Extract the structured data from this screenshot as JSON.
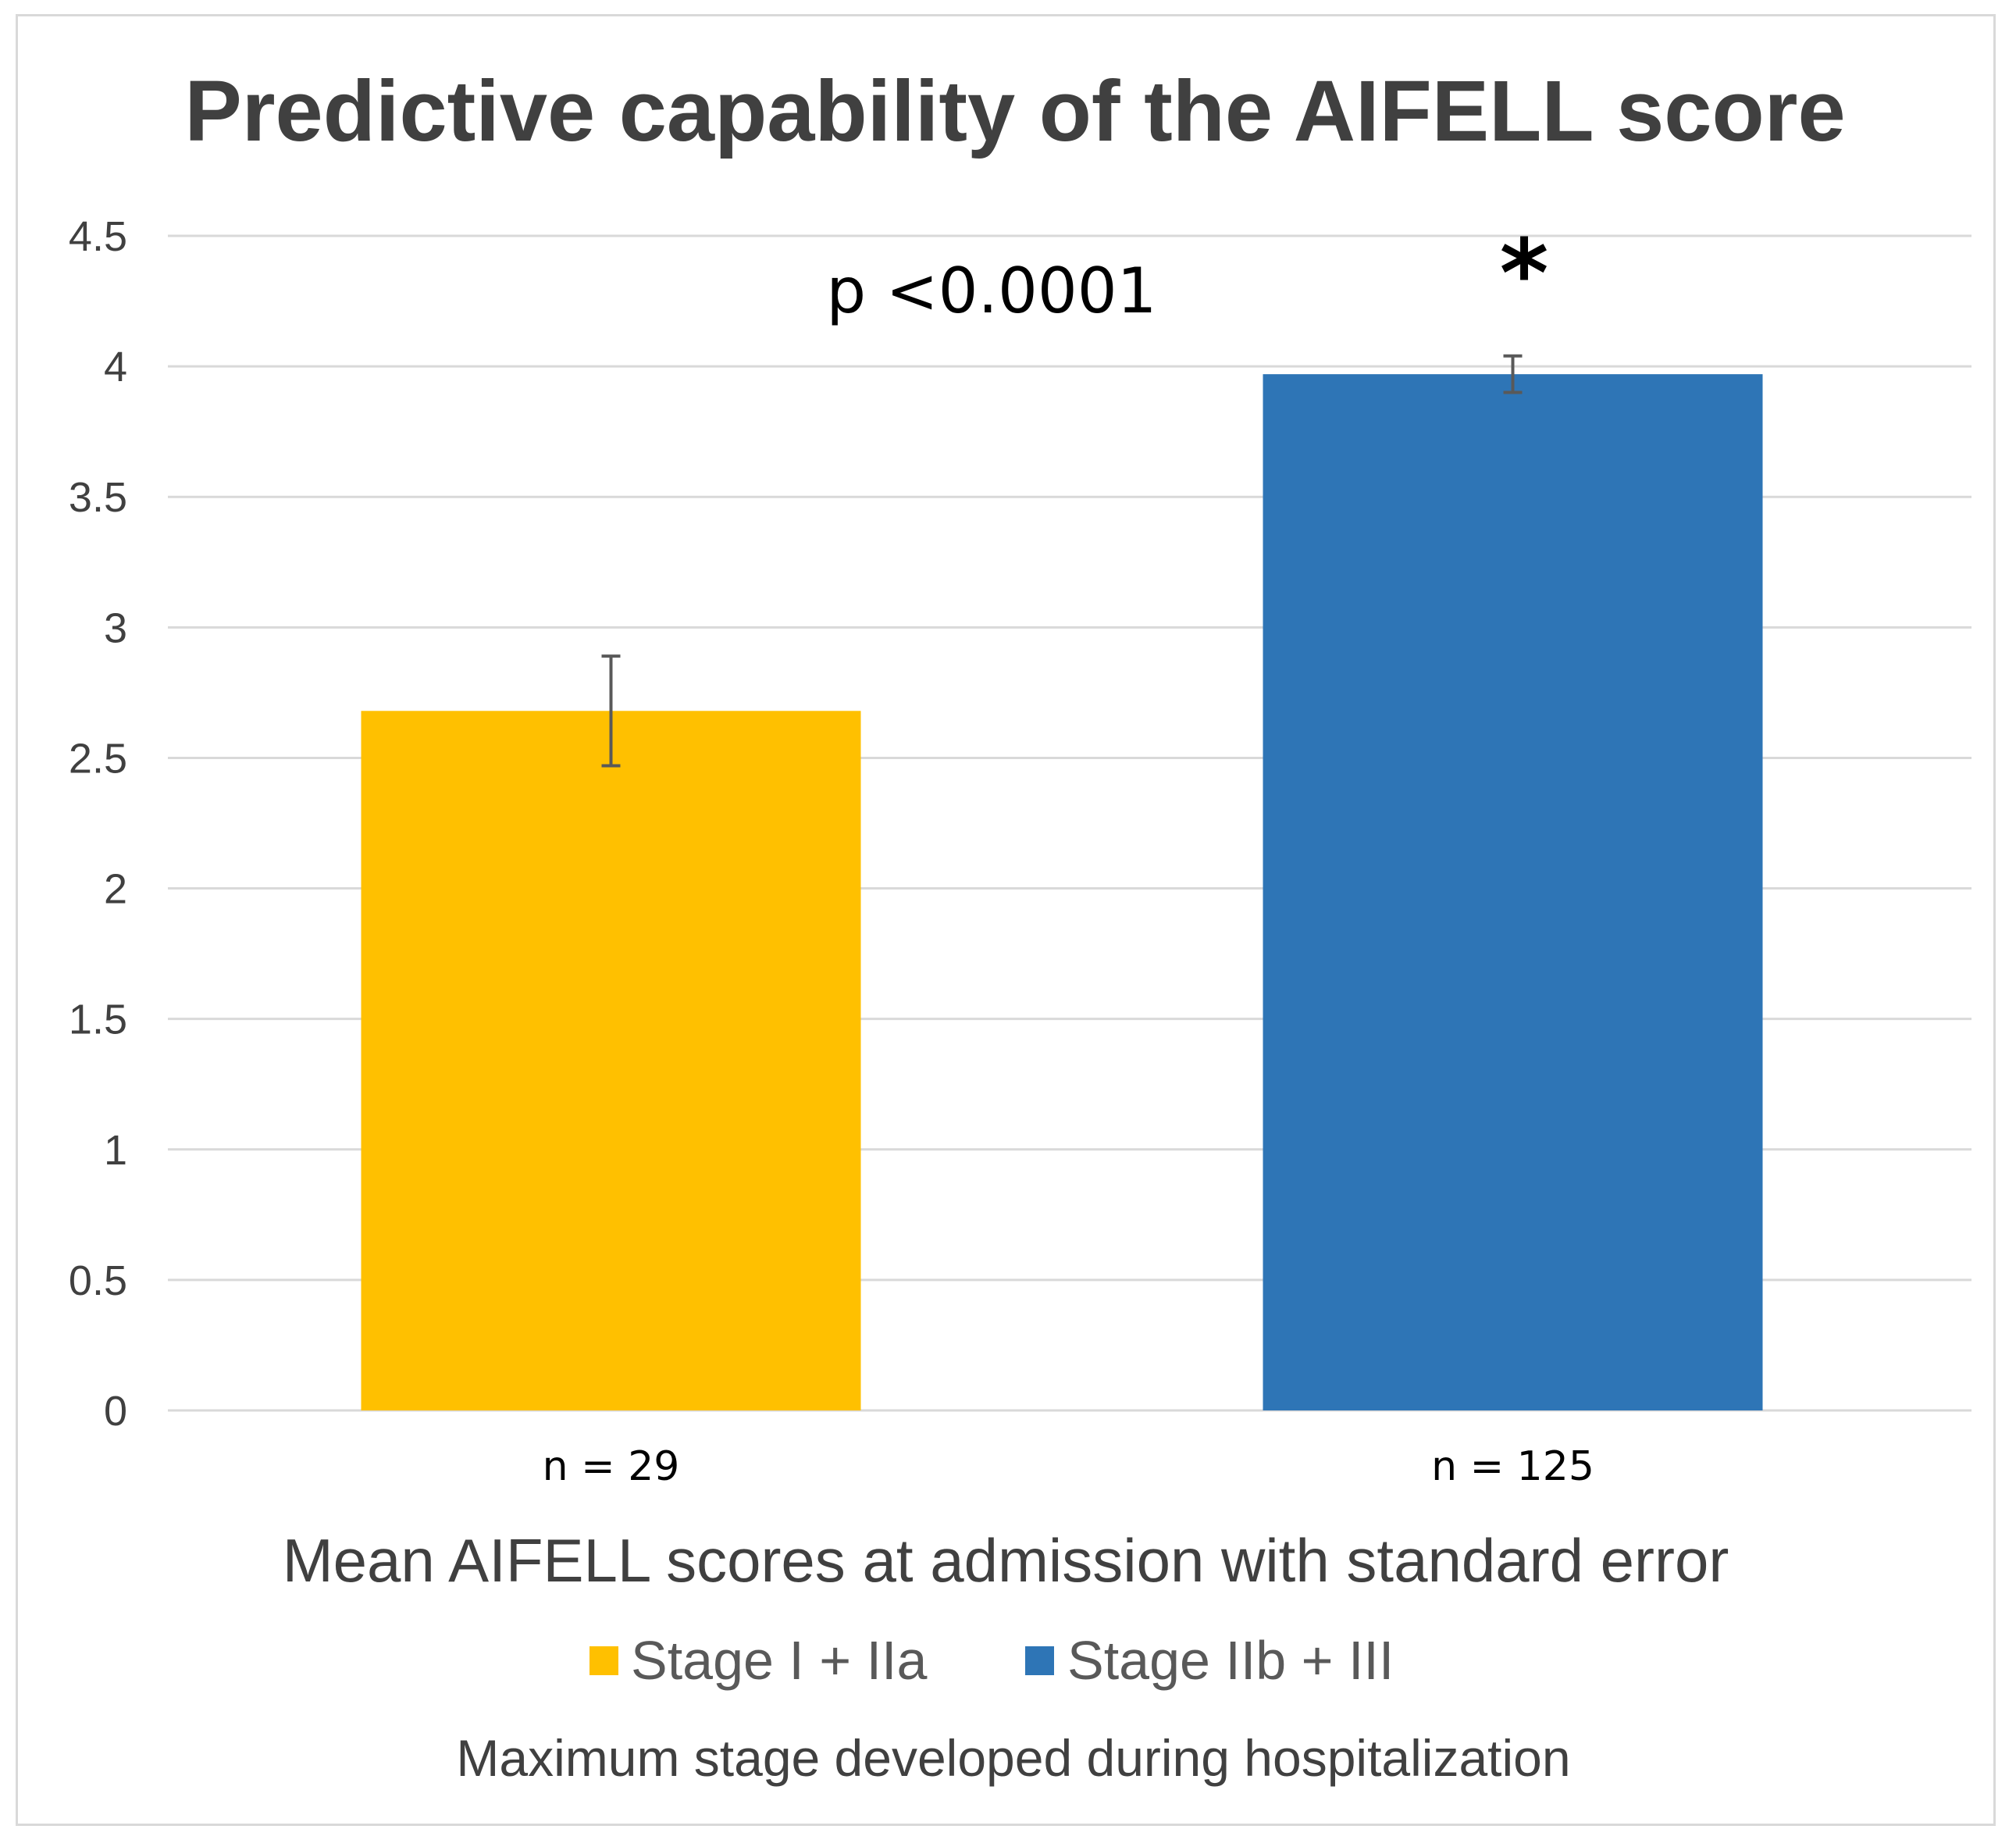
{
  "chart_data": {
    "type": "bar",
    "title": "Predictive capability of the AIFELL score",
    "xlabel": "Mean AIFELL scores at admission with standard error",
    "ylabel": "",
    "ylim": [
      0,
      4.5
    ],
    "yticks": [
      "0",
      "0.5",
      "1",
      "1.5",
      "2",
      "2.5",
      "3",
      "3.5",
      "4",
      "4.5"
    ],
    "grid": true,
    "categories": [
      "n = 29",
      "n = 125"
    ],
    "series": [
      {
        "name": "Stage I + IIa",
        "color": "#FFC000",
        "values": [
          2.68,
          null
        ],
        "error": [
          0.21,
          null
        ]
      },
      {
        "name": "Stage IIb + III",
        "color": "#2E75B6",
        "values": [
          null,
          3.97
        ],
        "error": [
          null,
          0.07
        ]
      }
    ],
    "annotations": [
      {
        "text": "p <0.0001"
      },
      {
        "text": "*"
      }
    ],
    "legend": {
      "position": "bottom",
      "title": "Maximum stage developed during hospitalization"
    }
  }
}
